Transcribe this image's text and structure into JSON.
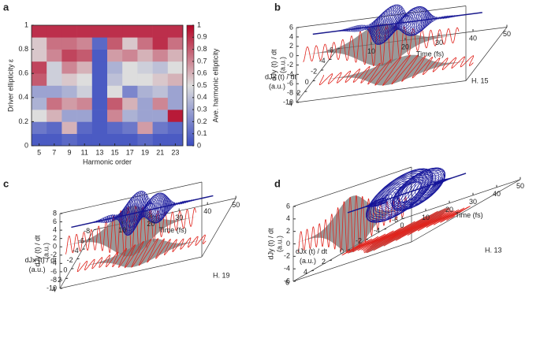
{
  "chart_data": [
    {
      "type": "heatmap",
      "panel_label": "a",
      "x_label": "Harmonic order",
      "y_label": "Driver ellipticity ε",
      "x": [
        5,
        7,
        9,
        11,
        13,
        15,
        17,
        19,
        21,
        23
      ],
      "ylim": [
        0,
        1
      ],
      "yticks": [
        0,
        0.2,
        0.4,
        0.6,
        0.8,
        1
      ],
      "values": [
        [
          0.05,
          0.05,
          0.1,
          0.05,
          0.05,
          0.05,
          0.05,
          0.1,
          0.05,
          0.05
        ],
        [
          0.15,
          0.1,
          0.6,
          0.1,
          0.05,
          0.1,
          0.15,
          0.65,
          0.15,
          0.1
        ],
        [
          0.5,
          0.6,
          0.3,
          0.3,
          0.05,
          0.7,
          0.35,
          0.3,
          0.3,
          0.95
        ],
        [
          0.35,
          0.75,
          0.65,
          0.7,
          0.05,
          0.8,
          0.6,
          0.3,
          0.7,
          0.3
        ],
        [
          0.3,
          0.3,
          0.35,
          0.45,
          0.05,
          0.5,
          0.2,
          0.35,
          0.4,
          0.3
        ],
        [
          0.8,
          0.45,
          0.55,
          0.5,
          0.05,
          0.4,
          0.5,
          0.5,
          0.55,
          0.6
        ],
        [
          0.85,
          0.45,
          0.7,
          0.6,
          0.05,
          0.35,
          0.5,
          0.45,
          0.4,
          0.5
        ],
        [
          0.55,
          0.7,
          0.85,
          0.8,
          0.05,
          0.65,
          0.7,
          0.6,
          0.7,
          0.6
        ],
        [
          0.55,
          0.75,
          0.75,
          0.7,
          0.1,
          0.8,
          0.55,
          0.75,
          0.9,
          0.75
        ],
        [
          0.9,
          0.9,
          0.9,
          0.9,
          0.9,
          0.9,
          0.9,
          0.9,
          0.9,
          0.9
        ]
      ],
      "colorbar": {
        "label": "Ave. harmonic ellipticity",
        "lim": [
          0,
          1
        ],
        "ticks": [
          0,
          0.1,
          0.2,
          0.3,
          0.4,
          0.5,
          0.6,
          0.7,
          0.8,
          0.9,
          1
        ],
        "colors": [
          "#3b4cc0",
          "#dddddd",
          "#b40426"
        ]
      }
    },
    {
      "type": "line3d",
      "panel_label": "b",
      "annotation": "H. 15",
      "x_label": "Time (fs)",
      "y_label": "dJx (t) / dt",
      "y_label_unit": "(a.u.)",
      "z_label": "dJy (t) / dt",
      "z_label_unit": "(a.u.)",
      "xlim": [
        0,
        50
      ],
      "xticks": [
        10,
        20,
        30,
        40,
        50
      ],
      "ylim": [
        -6,
        4
      ],
      "yticks": [
        4,
        2,
        0,
        -2,
        -4,
        -6
      ],
      "zlim": [
        -10,
        6
      ],
      "zticks": [
        6,
        4,
        2,
        0,
        -2,
        -4,
        -6,
        -8,
        -10
      ]
    },
    {
      "type": "line3d",
      "panel_label": "c",
      "annotation": "H. 19",
      "x_label": "Time (fs)",
      "y_label": "dJx (t) / dt",
      "y_label_unit": "(a.u.)",
      "z_label": "dJy (t) / dt",
      "z_label_unit": "(a.u.)",
      "xlim": [
        0,
        50
      ],
      "xticks": [
        10,
        20,
        30,
        40,
        50
      ],
      "ylim": [
        -8,
        4
      ],
      "yticks": [
        4,
        2,
        0,
        -2,
        -4,
        -6,
        -8
      ],
      "zlim": [
        -10,
        8
      ],
      "zticks": [
        8,
        6,
        4,
        2,
        0,
        -2,
        -4,
        -6,
        -8,
        -10
      ]
    },
    {
      "type": "line3d",
      "panel_label": "d",
      "annotation": "H. 13",
      "x_label": "Time (fs)",
      "y_label": "dJx (t) / dt",
      "y_label_unit": "(a.u.)",
      "z_label": "dJy (t) / dt",
      "z_label_unit": "(a.u.)",
      "xlim": [
        0,
        50
      ],
      "xticks": [
        0,
        10,
        20,
        30,
        40,
        50
      ],
      "ylim": [
        -6,
        6
      ],
      "yticks": [
        6,
        4,
        2,
        0,
        -2,
        -4,
        -6
      ],
      "zlim": [
        -6,
        6
      ],
      "zticks": [
        6,
        4,
        2,
        0,
        -2,
        -4,
        -6
      ]
    }
  ]
}
